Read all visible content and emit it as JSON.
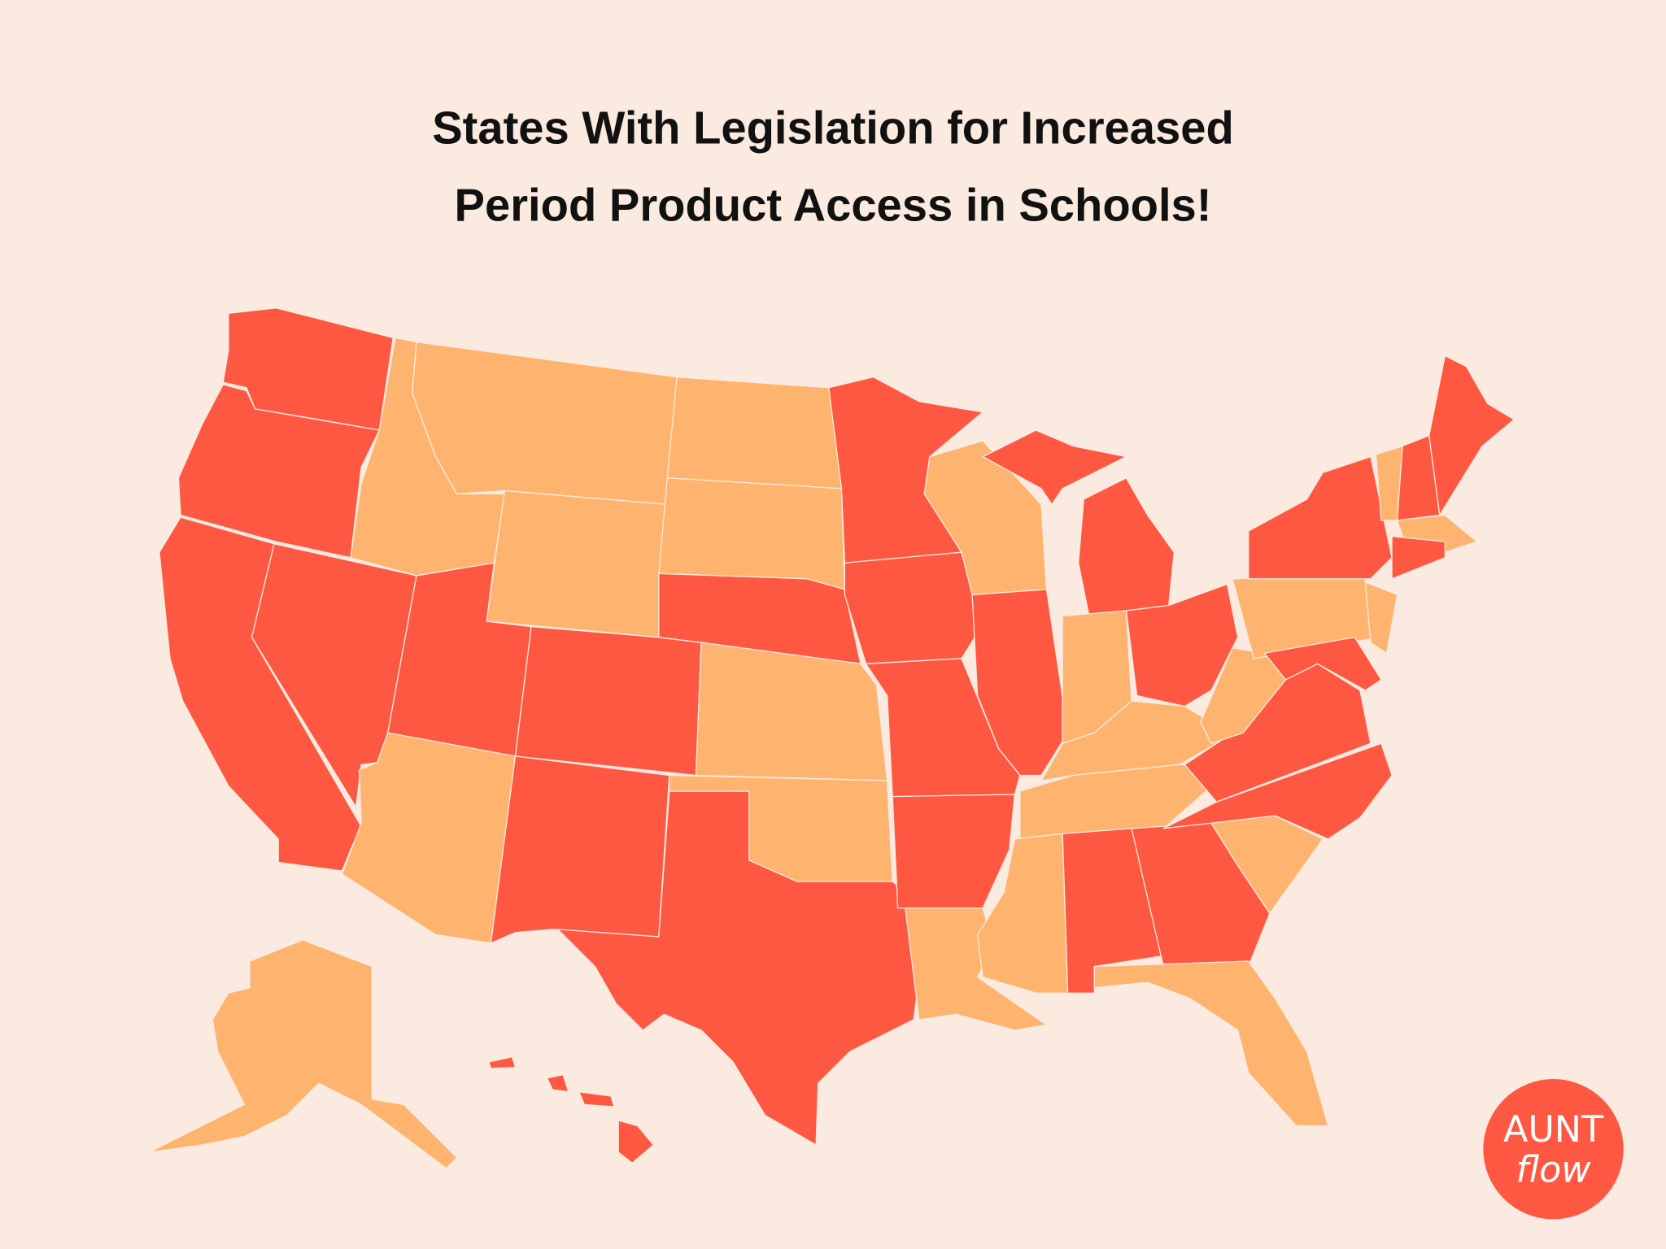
{
  "header": {
    "title_lines": [
      "States With Legislation for Increased",
      "Period Product Access in Schools!"
    ]
  },
  "logo": {
    "lines": [
      "AUNT",
      "flow"
    ]
  }
}
